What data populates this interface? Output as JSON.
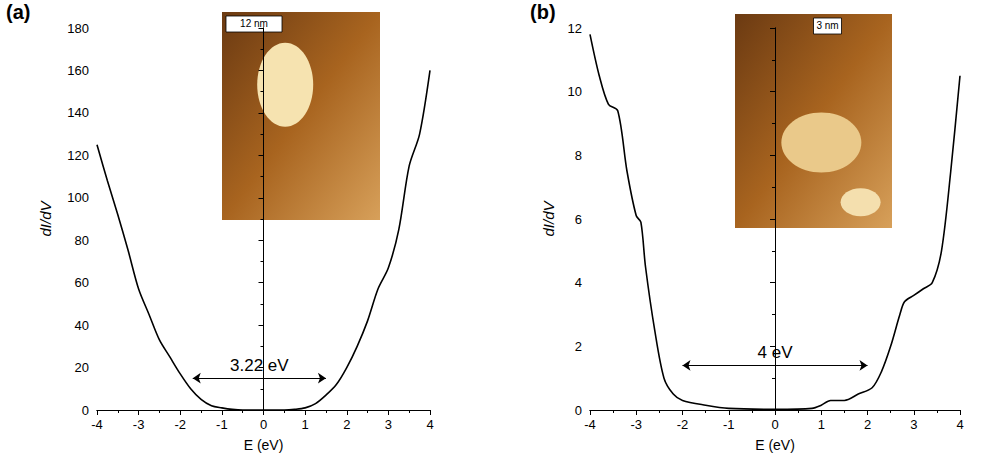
{
  "chart_data": [
    {
      "type": "line",
      "panel": "(a)",
      "color": "#000000",
      "x_label": "E (eV)",
      "y_label": "dI/dV",
      "x": [
        -4,
        -3.75,
        -3.5,
        -3.25,
        -3,
        -2.75,
        -2.5,
        -2.25,
        -2,
        -1.75,
        -1.5,
        -1.25,
        -1,
        -0.75,
        -0.5,
        0,
        0.5,
        0.75,
        1,
        1.25,
        1.5,
        1.75,
        2,
        2.25,
        2.5,
        2.75,
        3,
        3.25,
        3.5,
        3.75,
        4
      ],
      "values": [
        125,
        108,
        92,
        75,
        57,
        45,
        33,
        25,
        17,
        10,
        5,
        2,
        1,
        0.3,
        0,
        0,
        0,
        0.3,
        1,
        3,
        7,
        12,
        20,
        30,
        42,
        57,
        67,
        85,
        115,
        130,
        160
      ],
      "xlim": [
        -4,
        4
      ],
      "xticks": [
        -4,
        -3,
        -2,
        -1,
        0,
        1,
        2,
        3,
        4
      ],
      "ylim": [
        0,
        180
      ],
      "yticks": [
        0,
        20,
        40,
        60,
        80,
        100,
        120,
        140,
        160,
        180
      ],
      "annotation": {
        "text": "3.22 eV",
        "from": -1.7,
        "to": 1.5,
        "y": 15
      },
      "inset": {
        "scale_bar": "12 nm"
      }
    },
    {
      "type": "line",
      "panel": "(b)",
      "color": "#000000",
      "x_label": "E (eV)",
      "y_label": "dI/dV",
      "x": [
        -4,
        -3.8,
        -3.6,
        -3.4,
        -3.2,
        -3,
        -2.9,
        -2.8,
        -2.6,
        -2.4,
        -2.2,
        -2,
        -1.5,
        -1,
        0,
        0.8,
        1,
        1.2,
        1.5,
        1.8,
        2.1,
        2.3,
        2.5,
        2.7,
        2.8,
        3,
        3.2,
        3.4,
        3.6,
        3.8,
        4
      ],
      "values": [
        11.8,
        10.5,
        9.6,
        9.4,
        7.5,
        6.1,
        5.9,
        4.5,
        2.5,
        1.0,
        0.5,
        0.3,
        0.15,
        0.05,
        0.02,
        0.05,
        0.15,
        0.3,
        0.3,
        0.5,
        0.7,
        1.2,
        2.0,
        3.0,
        3.4,
        3.6,
        3.8,
        4.0,
        5.0,
        7.5,
        10.5
      ],
      "xlim": [
        -4,
        4
      ],
      "xticks": [
        -4,
        -3,
        -2,
        -1,
        0,
        1,
        2,
        3,
        4
      ],
      "ylim": [
        0,
        12
      ],
      "yticks": [
        0,
        2,
        4,
        6,
        8,
        10,
        12
      ],
      "annotation": {
        "text": "4 eV",
        "from": -2,
        "to": 2,
        "y": 1.4
      },
      "inset": {
        "scale_bar": "3 nm"
      }
    }
  ]
}
